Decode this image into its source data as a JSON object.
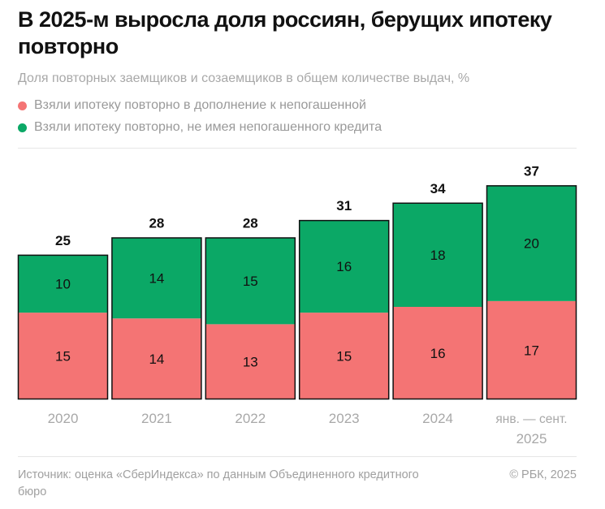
{
  "title": "В 2025-м выросла доля россиян, берущих ипотеку повторно",
  "subtitle": "Доля повторных заемщиков и созаемщиков в общем количестве выдач, %",
  "source": "Источник: оценка «СберИндекса» по данным Объединенного кредитного бюро",
  "copyright": "© РБК, 2025",
  "chart_data": {
    "type": "bar",
    "stacked": true,
    "categories": [
      "2020",
      "2021",
      "2022",
      "2023",
      "2024",
      "янв. — сент. 2025"
    ],
    "series": [
      {
        "name": "Взяли ипотеку повторно в дополнение к непогашенной",
        "color": "#f47474",
        "values": [
          15,
          14,
          13,
          15,
          16,
          17
        ]
      },
      {
        "name": "Взяли ипотеку повторно, не имея непогашенного кредита",
        "color": "#0ba866",
        "values": [
          10,
          14,
          15,
          16,
          18,
          20
        ]
      }
    ],
    "totals": [
      25,
      28,
      28,
      31,
      34,
      37
    ],
    "ylim": [
      0,
      40
    ],
    "grid": false,
    "legend": "top-left"
  }
}
